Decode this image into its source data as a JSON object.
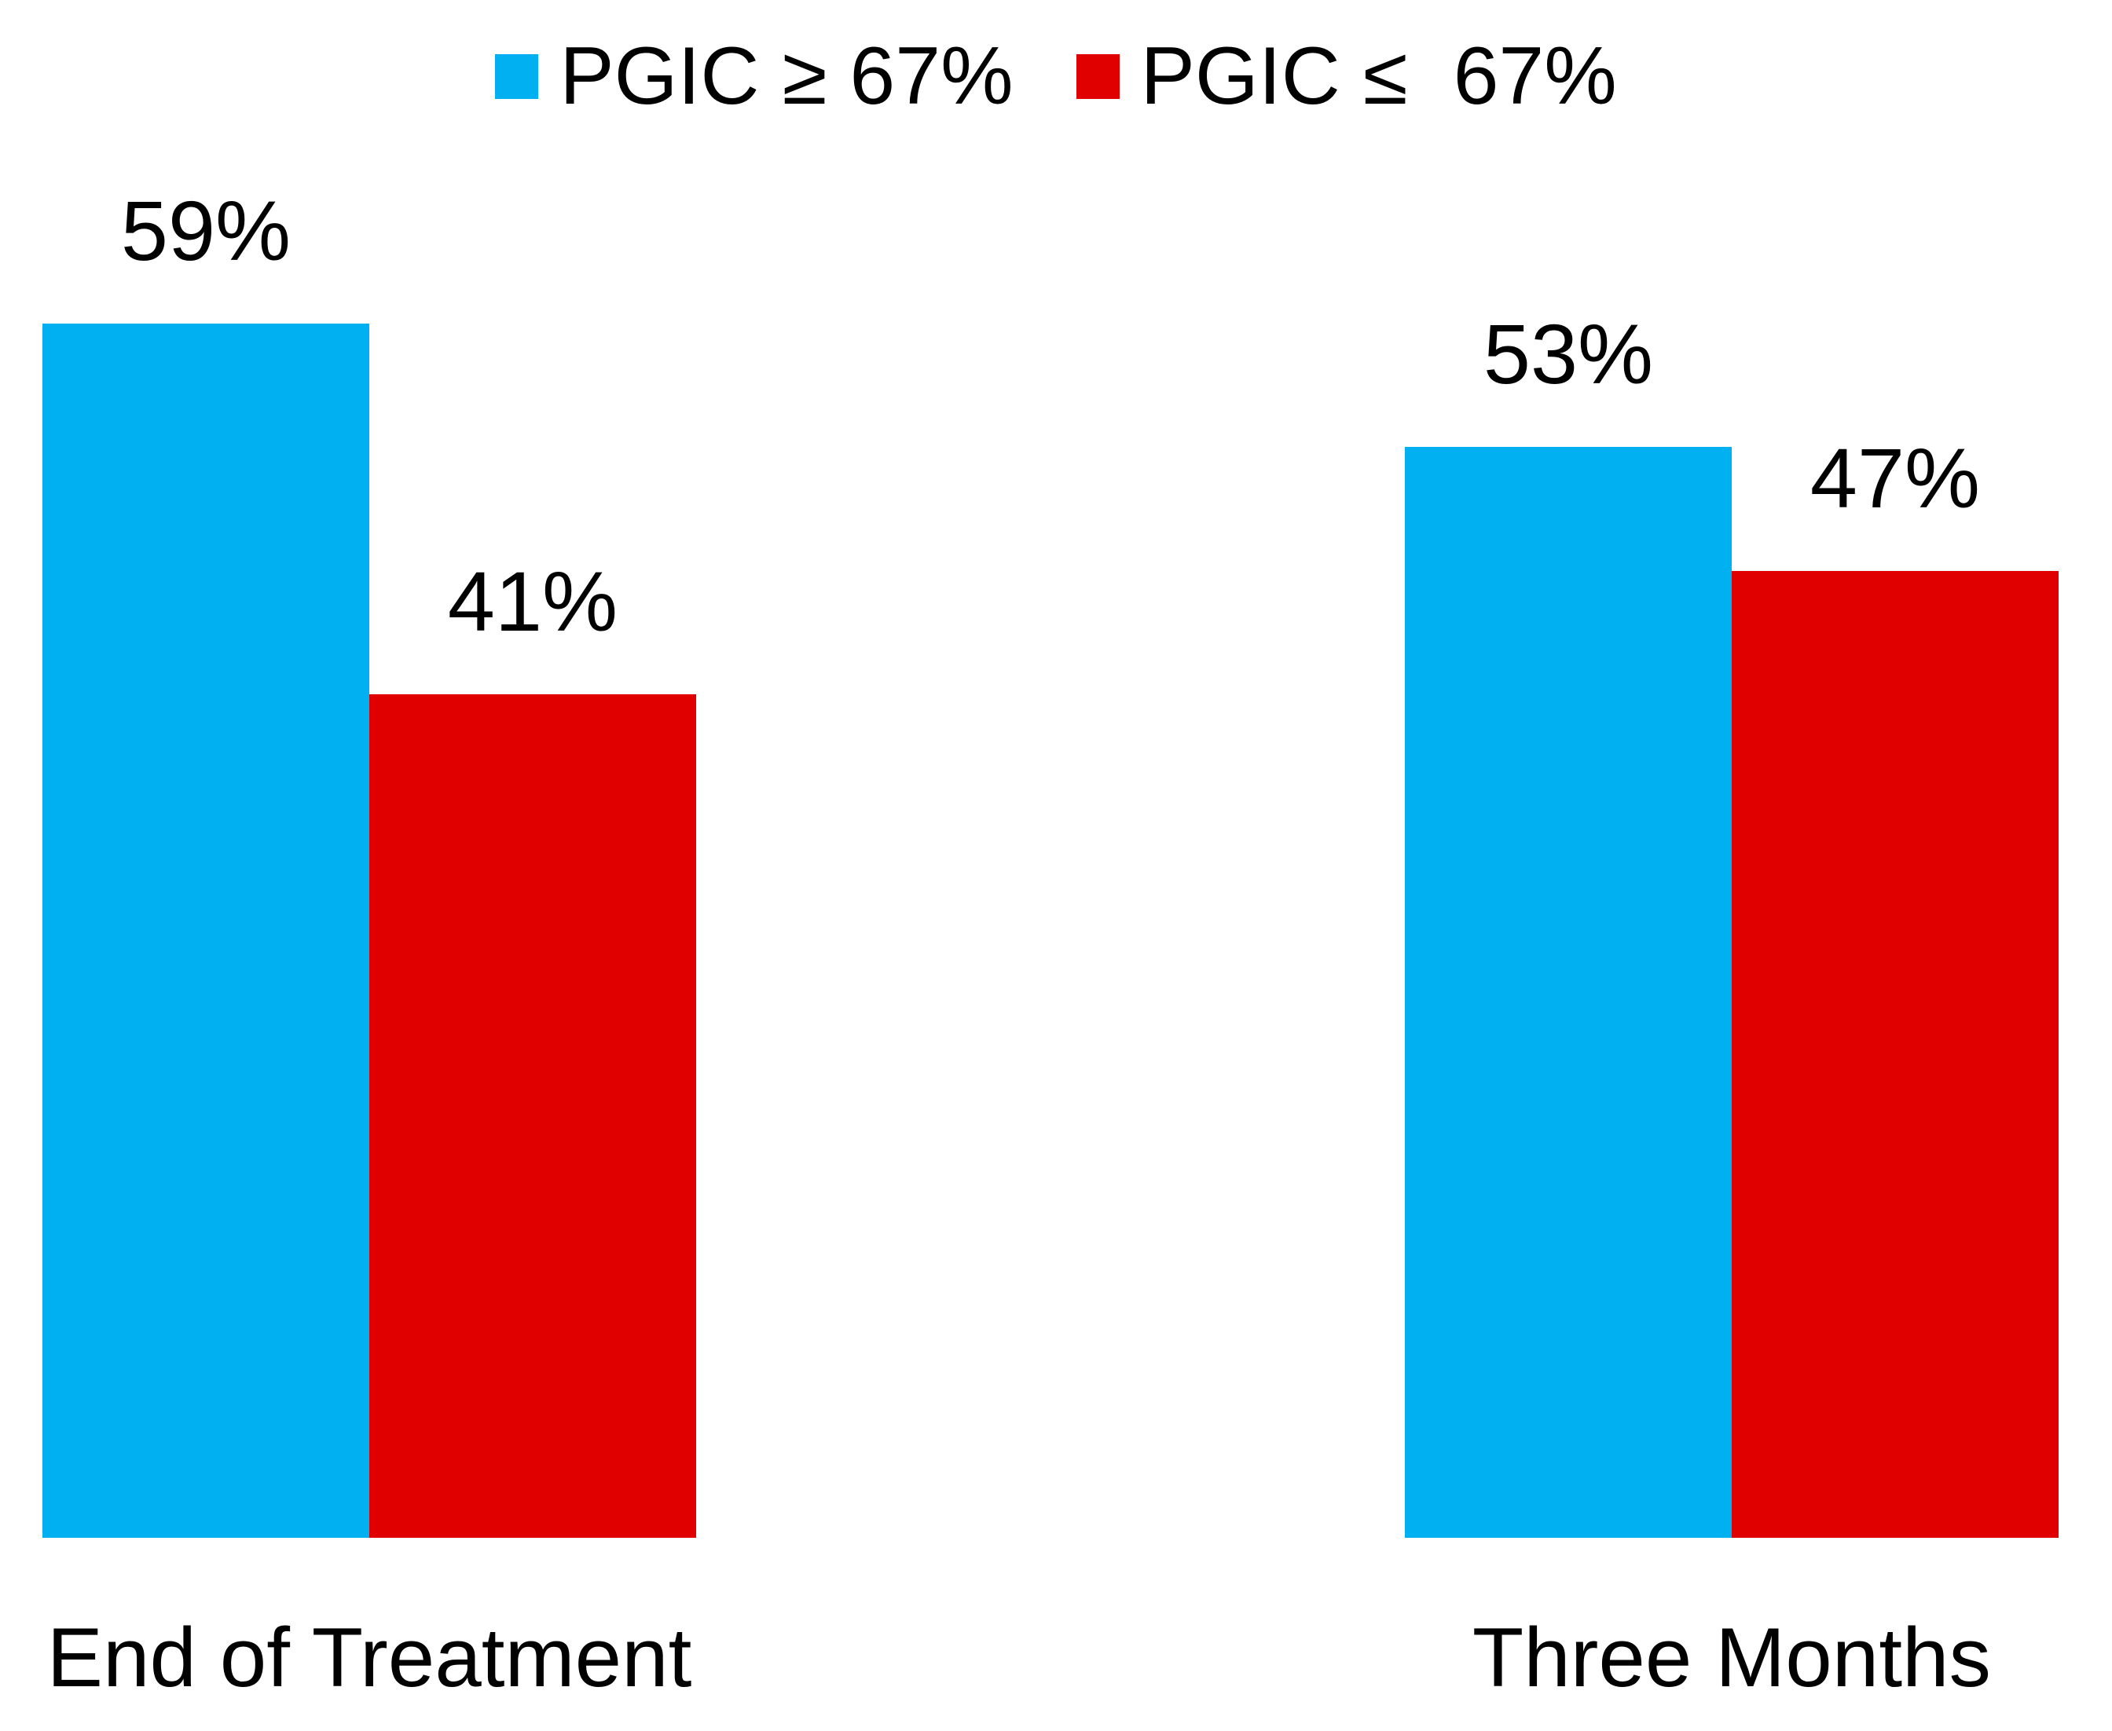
{
  "chart_data": {
    "type": "bar",
    "categories": [
      "End of Treatment",
      "Three Months"
    ],
    "series": [
      {
        "name": "PGIC ≥ 67%",
        "color": "#00B0F0",
        "values": [
          59,
          53
        ]
      },
      {
        "name": "PGIC ≤  67%",
        "color": "#E00000",
        "values": [
          41,
          47
        ]
      }
    ],
    "value_suffix": "%",
    "bar_labels": [
      "59%",
      "41%",
      "53%",
      "47%"
    ],
    "title": "",
    "xlabel": "",
    "ylabel": "",
    "ylim": [
      0,
      75
    ],
    "grid": false,
    "legend_position": "top",
    "background_color": "#FFFFFF",
    "text_color": "#000000"
  }
}
